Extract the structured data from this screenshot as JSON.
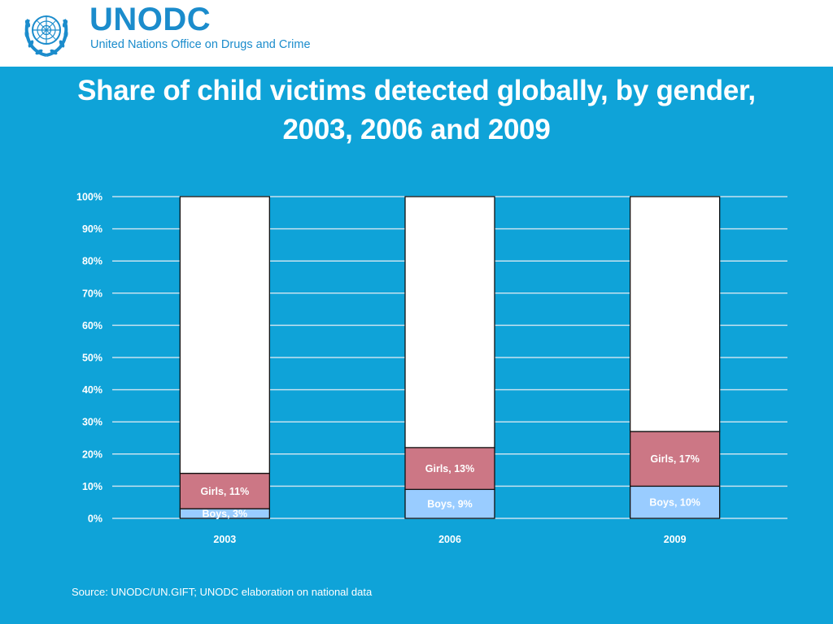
{
  "header": {
    "logo_text": "UNODC",
    "logo_subtext": "United Nations Office on Drugs and Crime",
    "emblem_icon": "un-emblem-icon"
  },
  "title_lines": [
    "Share of child victims detected globally, by gender,",
    "2003, 2006 and 2009"
  ],
  "source": "Source: UNODC/UN.GIFT; UNODC elaboration on national data",
  "colors": {
    "background": "#0fa3d8",
    "boys": "#99ccff",
    "girls": "#cc7785",
    "remainder": "#ffffff",
    "gridline": "#c6e2ef"
  },
  "chart_data": {
    "type": "bar",
    "stacked": true,
    "categories": [
      "2003",
      "2006",
      "2009"
    ],
    "series": [
      {
        "name": "Boys",
        "values": [
          3,
          9,
          10
        ],
        "labels": [
          "Boys, 3%",
          "Boys, 9%",
          "Boys, 10%"
        ],
        "color": "#99ccff"
      },
      {
        "name": "Girls",
        "values": [
          11,
          13,
          17
        ],
        "labels": [
          "Girls, 11%",
          "Girls, 13%",
          "Girls, 17%"
        ],
        "color": "#cc7785"
      },
      {
        "values": [
          86,
          78,
          73
        ],
        "color": "#ffffff"
      }
    ],
    "yticks": [
      "0%",
      "10%",
      "20%",
      "30%",
      "40%",
      "50%",
      "60%",
      "70%",
      "80%",
      "90%",
      "100%"
    ],
    "ylim": [
      0,
      100
    ],
    "grid": true,
    "legend": "none"
  }
}
